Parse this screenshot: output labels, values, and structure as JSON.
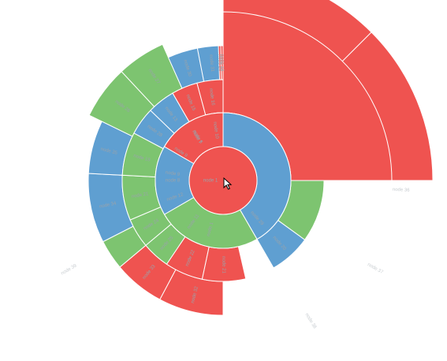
{
  "chart_data": {
    "type": "sunburst",
    "colors": {
      "red": "#ef5350",
      "green": "#7dc470",
      "blue": "#5f9fd1"
    },
    "root": {
      "label": "node 1",
      "color": "red"
    },
    "level_1": [
      {
        "label": "",
        "value": 1,
        "color": "blue"
      },
      {
        "label": "node 1",
        "value": 1,
        "color": "green"
      },
      {
        "label": "node 8",
        "value": 1,
        "color": "blue"
      },
      {
        "label": "node 6",
        "value": 1,
        "color": "red"
      }
    ],
    "level_2": [
      {
        "label": "",
        "value": 1,
        "color": "green"
      },
      {
        "label": "node 29",
        "value": 1,
        "color": "blue"
      },
      {
        "label": "",
        "value": 1,
        "color": "blue"
      },
      {
        "label": "node 11",
        "value": 1,
        "color": "red"
      },
      {
        "label": "node 12",
        "value": 1,
        "color": "green"
      },
      {
        "label": "node 9",
        "value": 1,
        "color": "green"
      },
      {
        "label": "node 9",
        "value": 1,
        "color": "blue"
      },
      {
        "label": "node 7",
        "value": 1,
        "color": "red"
      },
      {
        "label": "node 10",
        "value": 1,
        "color": "red"
      }
    ],
    "level_3": [
      {
        "label": "",
        "value": 1,
        "color": "red"
      },
      {
        "label": "",
        "value": 1,
        "color": "green"
      },
      {
        "label": "node 20",
        "value": 1,
        "color": "blue"
      },
      {
        "label": "node 21",
        "value": 1,
        "color": "red"
      },
      {
        "label": "node 22",
        "value": 1,
        "color": "red"
      },
      {
        "label": "node 25",
        "value": 1,
        "color": "green"
      },
      {
        "label": "node 24",
        "value": 1,
        "color": "green"
      },
      {
        "label": "node 21",
        "value": 1,
        "color": "green"
      },
      {
        "label": "node 19",
        "value": 1,
        "color": "green"
      },
      {
        "label": "node 28",
        "value": 1,
        "color": "blue"
      },
      {
        "label": "node 13",
        "value": 1,
        "color": "blue"
      },
      {
        "label": "node 15",
        "value": 1,
        "color": "red"
      },
      {
        "label": "node 16",
        "value": 1,
        "color": "red"
      },
      {
        "label": "node 17",
        "value": 1,
        "color": "red"
      }
    ],
    "level_4": [
      {
        "label": "",
        "value": 1,
        "color": "red"
      },
      {
        "label": "",
        "value": 1,
        "color": "red"
      },
      {
        "label": "node 32",
        "value": 1,
        "color": "red"
      },
      {
        "label": "node 33",
        "value": 1,
        "color": "red"
      },
      {
        "label": "",
        "value": 1,
        "color": "green"
      },
      {
        "label": "node 34",
        "value": 1,
        "color": "blue"
      },
      {
        "label": "node 35",
        "value": 1,
        "color": "blue"
      },
      {
        "label": "node 26",
        "value": 1,
        "color": "green"
      },
      {
        "label": "node 27",
        "value": 1,
        "color": "green"
      },
      {
        "label": "node 30",
        "value": 1,
        "color": "blue"
      },
      {
        "label": "node 31",
        "value": 1,
        "color": "blue"
      },
      {
        "label": "node 18",
        "value": 1,
        "color": "red"
      },
      {
        "label": "node 20",
        "value": 1,
        "color": "red"
      }
    ],
    "faint_labels": [
      "node 36",
      "node 37",
      "node 38",
      "node 39"
    ]
  }
}
